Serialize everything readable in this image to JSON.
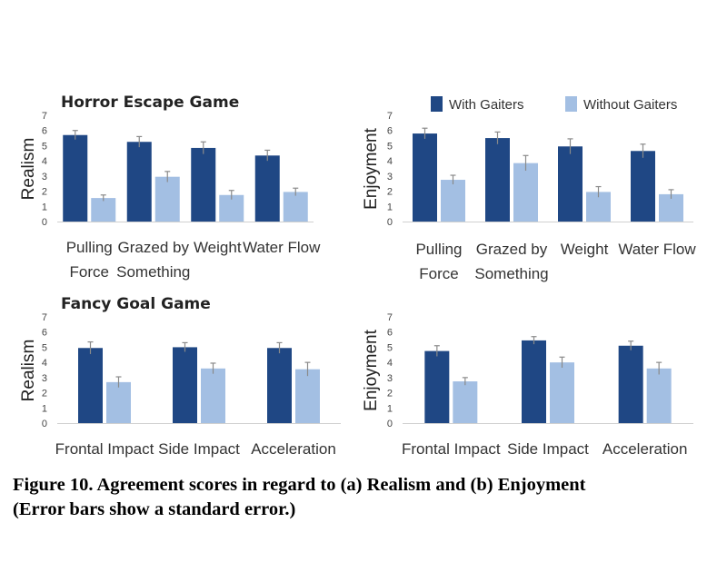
{
  "legend": {
    "items": [
      {
        "label": "With Gaiters",
        "color": "#1f4784"
      },
      {
        "label": "Without Gaiters",
        "color": "#a3bfe3"
      }
    ]
  },
  "caption": {
    "line1": "Figure 10. Agreement scores in regard to (a) Realism and (b) Enjoyment",
    "line2": "(Error bars show a standard error.)"
  },
  "chart_data": [
    {
      "type": "bar",
      "title": "Horror Escape Game",
      "ylabel": "Realism",
      "ylim": [
        0,
        7
      ],
      "yticks": [
        0,
        1,
        2,
        3,
        4,
        5,
        6,
        7
      ],
      "categories": [
        [
          "Pulling",
          "Force"
        ],
        [
          "Grazed by",
          "Something"
        ],
        [
          "Weight"
        ],
        [
          "Water Flow"
        ]
      ],
      "series": [
        {
          "name": "With Gaiters",
          "values": [
            5.7,
            5.25,
            4.85,
            4.35
          ],
          "errors": [
            0.3,
            0.35,
            0.4,
            0.35
          ]
        },
        {
          "name": "Without Gaiters",
          "values": [
            1.55,
            2.95,
            1.75,
            1.95
          ],
          "errors": [
            0.2,
            0.35,
            0.3,
            0.25
          ]
        }
      ],
      "grid": false
    },
    {
      "type": "bar",
      "title": "",
      "ylabel": "Enjoyment",
      "ylim": [
        0,
        7
      ],
      "yticks": [
        0,
        1,
        2,
        3,
        4,
        5,
        6,
        7
      ],
      "categories": [
        [
          "Pulling",
          "Force"
        ],
        [
          "Grazed by",
          "Something"
        ],
        [
          "Weight"
        ],
        [
          "Water Flow"
        ]
      ],
      "series": [
        {
          "name": "With Gaiters",
          "values": [
            5.8,
            5.5,
            4.95,
            4.65
          ],
          "errors": [
            0.35,
            0.4,
            0.5,
            0.45
          ]
        },
        {
          "name": "Without Gaiters",
          "values": [
            2.75,
            3.85,
            1.95,
            1.8
          ],
          "errors": [
            0.3,
            0.5,
            0.35,
            0.3
          ]
        }
      ],
      "grid": false,
      "legend": "top"
    },
    {
      "type": "bar",
      "title": "Fancy Goal Game",
      "ylabel": "Realism",
      "ylim": [
        0,
        7
      ],
      "yticks": [
        0,
        1,
        2,
        3,
        4,
        5,
        6,
        7
      ],
      "categories": [
        [
          "Frontal Impact"
        ],
        [
          "Side Impact"
        ],
        [
          "Acceleration"
        ]
      ],
      "series": [
        {
          "name": "With Gaiters",
          "values": [
            4.95,
            5.0,
            4.95
          ],
          "errors": [
            0.4,
            0.3,
            0.35
          ]
        },
        {
          "name": "Without Gaiters",
          "values": [
            2.7,
            3.6,
            3.55
          ],
          "errors": [
            0.35,
            0.35,
            0.45
          ]
        }
      ],
      "grid": false
    },
    {
      "type": "bar",
      "title": "",
      "ylabel": "Enjoyment",
      "ylim": [
        0,
        7
      ],
      "yticks": [
        0,
        1,
        2,
        3,
        4,
        5,
        6,
        7
      ],
      "categories": [
        [
          "Frontal Impact"
        ],
        [
          "Side Impact"
        ],
        [
          "Acceleration"
        ]
      ],
      "series": [
        {
          "name": "With Gaiters",
          "values": [
            4.75,
            5.45,
            5.1
          ],
          "errors": [
            0.35,
            0.25,
            0.3
          ]
        },
        {
          "name": "Without Gaiters",
          "values": [
            2.75,
            4.0,
            3.6
          ],
          "errors": [
            0.25,
            0.35,
            0.4
          ]
        }
      ],
      "grid": false
    }
  ]
}
